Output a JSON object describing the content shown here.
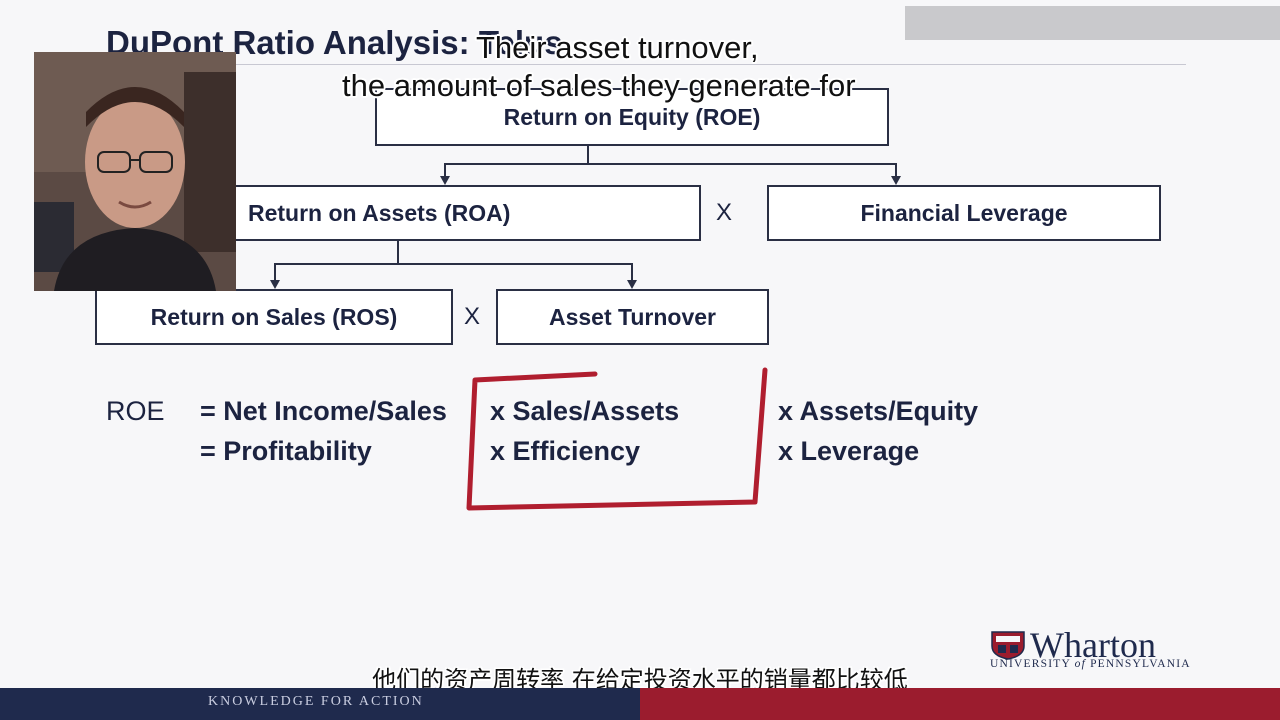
{
  "slide": {
    "title": "DuPont Ratio Analysis: Telus",
    "boxes": {
      "roe": "Return on Equity (ROE)",
      "roa": "Return on Assets (ROA)",
      "leverage": "Financial Leverage",
      "ros": "Return on Sales (ROS)",
      "turnover": "Asset Turnover"
    },
    "operators": {
      "times": "X"
    },
    "formula": {
      "row1": {
        "label": "ROE",
        "term1": "= Net Income/Sales",
        "term2": "x Sales/Assets",
        "term3": "x Assets/Equity"
      },
      "row2": {
        "term1": "= Profitability",
        "term2": "x  Efficiency",
        "term3": "x Leverage"
      }
    },
    "highlight_color": "#b01e2f"
  },
  "subtitles": {
    "english_line1": "Their asset turnover,",
    "english_line2": "the amount of sales they generate for",
    "chinese": "他们的资产周转率 在给定投资水平的销量都比较低"
  },
  "branding": {
    "logo_word": "Wharton",
    "logo_sub_prefix": "UNIVERSITY ",
    "logo_sub_of": "of",
    "logo_sub_suffix": " PENNSYLVANIA",
    "footer_tagline": "KNOWLEDGE FOR ACTION"
  }
}
